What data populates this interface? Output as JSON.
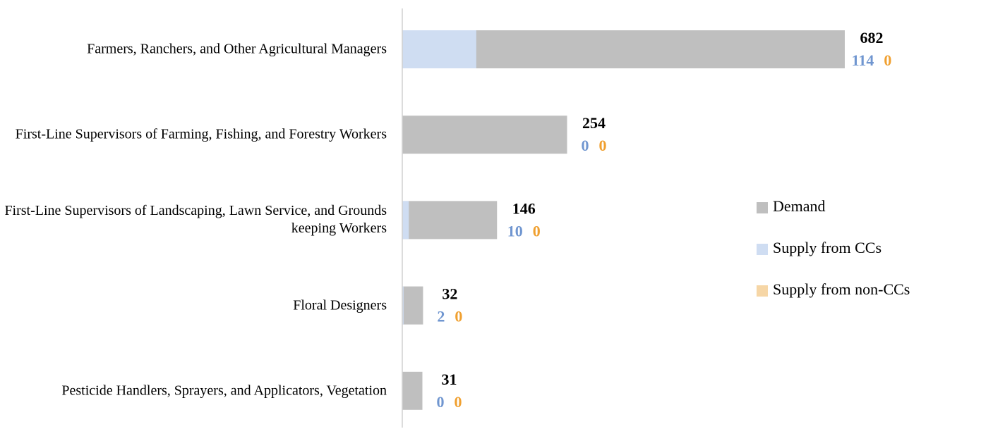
{
  "chart_data": {
    "type": "hbar_overlap",
    "categories": [
      "Farmers, Ranchers, and Other Agricultural Managers",
      "First-Line Supervisors of Farming, Fishing, and Forestry Workers",
      "First-Line Supervisors of Landscaping, Lawn Service, and Grounds keeping Workers",
      "Floral Designers",
      "Pesticide Handlers, Sprayers, and Applicators, Vegetation"
    ],
    "series": [
      {
        "name": "Demand",
        "color": "#bfbfbf",
        "values": [
          682,
          254,
          146,
          32,
          31
        ]
      },
      {
        "name": "Supply from CCs",
        "color": "#cfddf2",
        "values": [
          114,
          0,
          10,
          2,
          0
        ]
      },
      {
        "name": "Supply from non-CCs",
        "color": "#f6d6a6",
        "values": [
          0,
          0,
          0,
          0,
          0
        ]
      }
    ],
    "legend": "right"
  }
}
